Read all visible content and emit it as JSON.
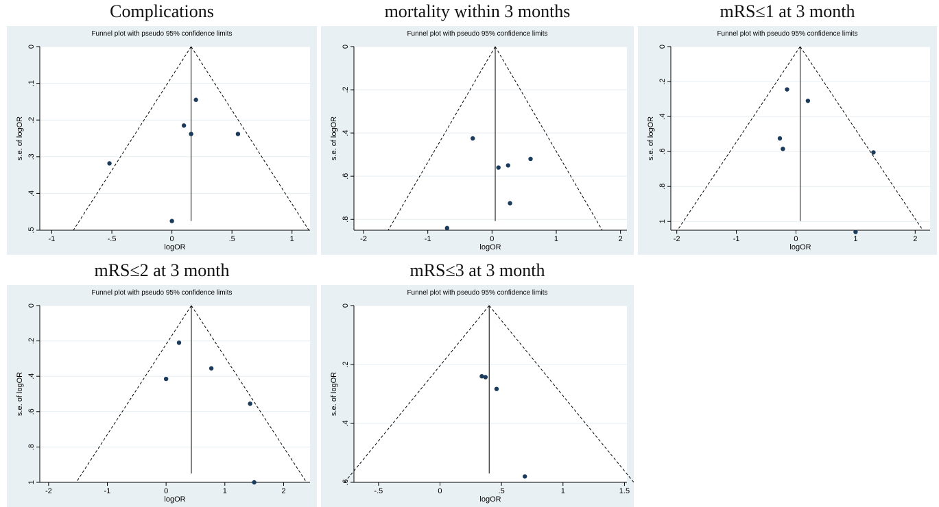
{
  "chart_data": [
    {
      "type": "scatter",
      "panel_title": "Complications",
      "title": "Funnel plot with pseudo 95% confidence limits",
      "xlabel": "logOR",
      "ylabel": "s.e. of logOR",
      "xlim": [
        -1.1,
        1.15
      ],
      "ylim": [
        0,
        0.5
      ],
      "y_inverted": true,
      "pooled_logOR": 0.16,
      "xticks": [
        -1,
        -0.5,
        0,
        0.5,
        1
      ],
      "xtick_labels": [
        "-1",
        "-.5",
        "0",
        ".5",
        "1"
      ],
      "yticks": [
        0,
        0.1,
        0.2,
        0.3,
        0.4,
        0.5
      ],
      "ytick_labels": [
        "0",
        ".1",
        ".2",
        ".3",
        ".4",
        ".5"
      ],
      "points": [
        {
          "x": 0.2,
          "y": 0.145
        },
        {
          "x": 0.1,
          "y": 0.215
        },
        {
          "x": 0.16,
          "y": 0.238
        },
        {
          "x": 0.55,
          "y": 0.238
        },
        {
          "x": -0.52,
          "y": 0.318
        },
        {
          "x": 0.0,
          "y": 0.475
        }
      ],
      "grid": true
    },
    {
      "type": "scatter",
      "panel_title": "mortality within 3 months",
      "title": "Funnel plot with pseudo 95% confidence limits",
      "xlabel": "logOR",
      "ylabel": "s.e. of logOR",
      "xlim": [
        -2.15,
        2.1
      ],
      "ylim": [
        0,
        0.85
      ],
      "y_inverted": true,
      "pooled_logOR": 0.05,
      "xticks": [
        -2,
        -1,
        0,
        1,
        2
      ],
      "xtick_labels": [
        "-2",
        "-1",
        "0",
        "1",
        "2"
      ],
      "yticks": [
        0,
        0.2,
        0.4,
        0.6,
        0.8
      ],
      "ytick_labels": [
        "0",
        ".2",
        ".4",
        ".6",
        ".8"
      ],
      "points": [
        {
          "x": -0.3,
          "y": 0.425
        },
        {
          "x": 0.6,
          "y": 0.52
        },
        {
          "x": 0.25,
          "y": 0.55
        },
        {
          "x": 0.1,
          "y": 0.56
        },
        {
          "x": 0.28,
          "y": 0.725
        },
        {
          "x": -0.7,
          "y": 0.84
        }
      ],
      "grid": true
    },
    {
      "type": "scatter",
      "panel_title": "mRS≤1 at 3 month",
      "title": "Funnel plot with pseudo 95% confidence limits",
      "xlabel": "logOR",
      "ylabel": "s.e. of logOR",
      "xlim": [
        -2.1,
        2.25
      ],
      "ylim": [
        0,
        1.05
      ],
      "y_inverted": true,
      "pooled_logOR": 0.07,
      "xticks": [
        -2,
        -1,
        0,
        1,
        2
      ],
      "xtick_labels": [
        "-2",
        "-1",
        "0",
        "1",
        "2"
      ],
      "yticks": [
        0,
        0.2,
        0.4,
        0.6,
        0.8,
        1.0
      ],
      "ytick_labels": [
        "0",
        ".2",
        ".4",
        ".6",
        ".8",
        "1"
      ],
      "points": [
        {
          "x": -0.15,
          "y": 0.245
        },
        {
          "x": 0.2,
          "y": 0.31
        },
        {
          "x": -0.27,
          "y": 0.525
        },
        {
          "x": -0.22,
          "y": 0.585
        },
        {
          "x": 1.3,
          "y": 0.605
        },
        {
          "x": 1.0,
          "y": 1.06
        }
      ],
      "grid": true
    },
    {
      "type": "scatter",
      "panel_title": "mRS≤2 at 3 month",
      "title": "Funnel plot with pseudo 95% confidence limits",
      "xlabel": "logOR",
      "ylabel": "s.e. of logOR",
      "xlim": [
        -2.15,
        2.45
      ],
      "ylim": [
        0,
        1.0
      ],
      "y_inverted": true,
      "pooled_logOR": 0.43,
      "xticks": [
        -2,
        -1,
        0,
        1,
        2
      ],
      "xtick_labels": [
        "-2",
        "-1",
        "0",
        "1",
        "2"
      ],
      "yticks": [
        0,
        0.2,
        0.4,
        0.6,
        0.8,
        1.0
      ],
      "ytick_labels": [
        "0",
        ".2",
        ".4",
        ".6",
        ".8",
        "1"
      ],
      "points": [
        {
          "x": 0.22,
          "y": 0.21
        },
        {
          "x": 0.77,
          "y": 0.355
        },
        {
          "x": 0.0,
          "y": 0.415
        },
        {
          "x": 1.43,
          "y": 0.555
        },
        {
          "x": 1.5,
          "y": 1.0
        }
      ],
      "grid": true
    },
    {
      "type": "scatter",
      "panel_title": "mRS≤3 at 3 month",
      "title": "Funnel plot with pseudo 95% confidence limits",
      "xlabel": "logOR",
      "ylabel": "s.e. of logOR",
      "xlim": [
        -0.7,
        1.52
      ],
      "ylim": [
        0,
        0.6
      ],
      "y_inverted": true,
      "pooled_logOR": 0.4,
      "xticks": [
        -0.5,
        0,
        0.5,
        1,
        1.5
      ],
      "xtick_labels": [
        "-.5",
        "0",
        ".5",
        "1",
        "1.5"
      ],
      "yticks": [
        0,
        0.2,
        0.4,
        0.6
      ],
      "ytick_labels": [
        "0",
        ".2",
        ".4",
        ".6"
      ],
      "points": [
        {
          "x": 0.34,
          "y": 0.24
        },
        {
          "x": 0.37,
          "y": 0.243
        },
        {
          "x": 0.46,
          "y": 0.283
        },
        {
          "x": 0.69,
          "y": 0.58
        }
      ],
      "grid": true
    }
  ]
}
